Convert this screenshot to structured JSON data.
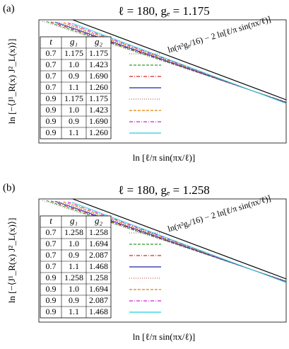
{
  "panels": [
    {
      "label": "(a)",
      "title": "ℓ = 180, gₑ = 1.175",
      "ylabel": "ln [−⟨J¹_R(x) J²_L(x)⟩]",
      "xlabel": "ln [ℓ/π sin(πx/ℓ)]",
      "annotation": "ln(π²gₑ/16) − 2 ln[ℓ/π sin(πx/ℓ)]",
      "header": [
        "t",
        "g₁",
        "g₂"
      ],
      "rows": [
        {
          "cells": [
            "0.7",
            "1.175",
            "1.175"
          ],
          "color": "#808080",
          "dash": "1,2"
        },
        {
          "cells": [
            "0.7",
            "1.0",
            "1.423"
          ],
          "color": "#2a9d2a",
          "dash": "4,2"
        },
        {
          "cells": [
            "0.7",
            "0.9",
            "1.690"
          ],
          "color": "#e0201e",
          "dash": "5,2,1,2"
        },
        {
          "cells": [
            "0.7",
            "1.1",
            "1.260"
          ],
          "color": "#2020b0",
          "dash": "none"
        },
        {
          "cells": [
            "0.9",
            "1.175",
            "1.175"
          ],
          "color": "#c06060",
          "dash": "1,2"
        },
        {
          "cells": [
            "0.9",
            "1.0",
            "1.423"
          ],
          "color": "#e08000",
          "dash": "4,2"
        },
        {
          "cells": [
            "0.9",
            "0.9",
            "1.690"
          ],
          "color": "#d020d0",
          "dash": "5,2,1,2"
        },
        {
          "cells": [
            "0.9",
            "1.1",
            "1.260"
          ],
          "color": "#20d0e0",
          "dash": "none"
        }
      ]
    },
    {
      "label": "(b)",
      "title": "ℓ = 180, gₑ = 1.258",
      "ylabel": "ln [−⟨J¹_R(x) J²_L(x)⟩]",
      "xlabel": "ln [ℓ/π sin(πx/ℓ)]",
      "annotation": "ln(π²gₑ/16) − 2 ln[ℓ/π sin(πx/ℓ)]",
      "header": [
        "t",
        "g₁",
        "g₂"
      ],
      "rows": [
        {
          "cells": [
            "0.7",
            "1.258",
            "1.258"
          ],
          "color": "#808080",
          "dash": "1,2"
        },
        {
          "cells": [
            "0.7",
            "1.0",
            "1.694"
          ],
          "color": "#2a9d2a",
          "dash": "4,2"
        },
        {
          "cells": [
            "0.7",
            "0.9",
            "2.087"
          ],
          "color": "#e0201e",
          "dash": "5,2,1,2"
        },
        {
          "cells": [
            "0.7",
            "1.1",
            "1.468"
          ],
          "color": "#2020b0",
          "dash": "none"
        },
        {
          "cells": [
            "0.9",
            "1.258",
            "1.258"
          ],
          "color": "#c06060",
          "dash": "1,2"
        },
        {
          "cells": [
            "0.9",
            "1.0",
            "1.694"
          ],
          "color": "#e08000",
          "dash": "4,2"
        },
        {
          "cells": [
            "0.9",
            "0.9",
            "2.087"
          ],
          "color": "#d020d0",
          "dash": "5,2,1,2"
        },
        {
          "cells": [
            "0.9",
            "1.1",
            "1.468"
          ],
          "color": "#20d0e0",
          "dash": "none"
        }
      ]
    }
  ]
}
